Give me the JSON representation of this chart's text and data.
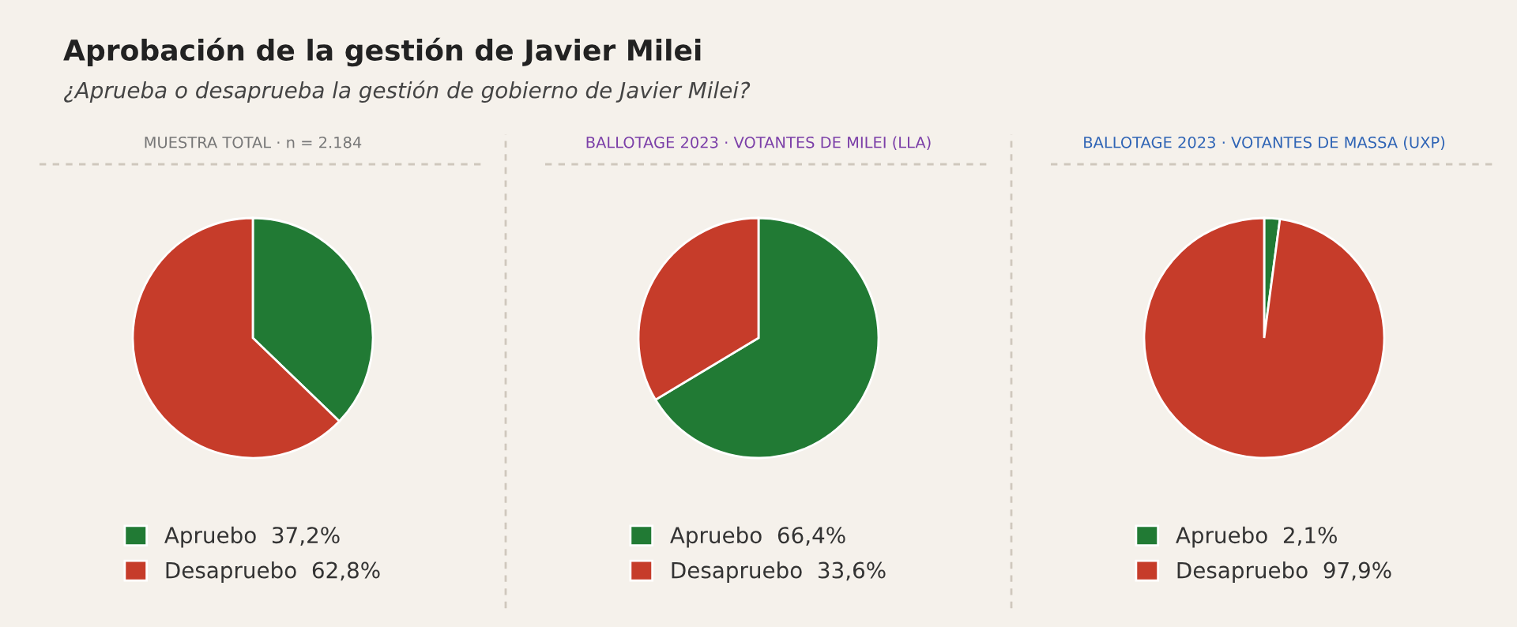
{
  "chart_data": [
    {
      "type": "pie",
      "title": "MUESTRA TOTAL · n = 2.184",
      "annotations": [
        "Aprobación de la gestión de Javier Milei",
        "¿Aprueba o desaprueba la gestión de gobierno de Javier Milei?"
      ],
      "categories": [
        "Apruebo",
        "Desapruebo"
      ],
      "values": [
        37.2,
        62.8
      ],
      "value_labels": [
        "37,2%",
        "62,8%"
      ],
      "colors": [
        "#217a34",
        "#c63c2a"
      ],
      "legend": "bottom"
    },
    {
      "type": "pie",
      "title": "BALLOTAGE 2023 · VOTANTES DE MILEI (LLA)",
      "categories": [
        "Apruebo",
        "Desapruebo"
      ],
      "values": [
        66.4,
        33.6
      ],
      "value_labels": [
        "66,4%",
        "33,6%"
      ],
      "colors": [
        "#217a34",
        "#c63c2a"
      ],
      "legend": "bottom"
    },
    {
      "type": "pie",
      "title": "BALLOTAGE 2023 · VOTANTES DE MASSA (UXP)",
      "categories": [
        "Apruebo",
        "Desapruebo"
      ],
      "values": [
        2.1,
        97.9
      ],
      "value_labels": [
        "2,1%",
        "97,9%"
      ],
      "colors": [
        "#217a34",
        "#c63c2a"
      ],
      "legend": "bottom"
    }
  ]
}
